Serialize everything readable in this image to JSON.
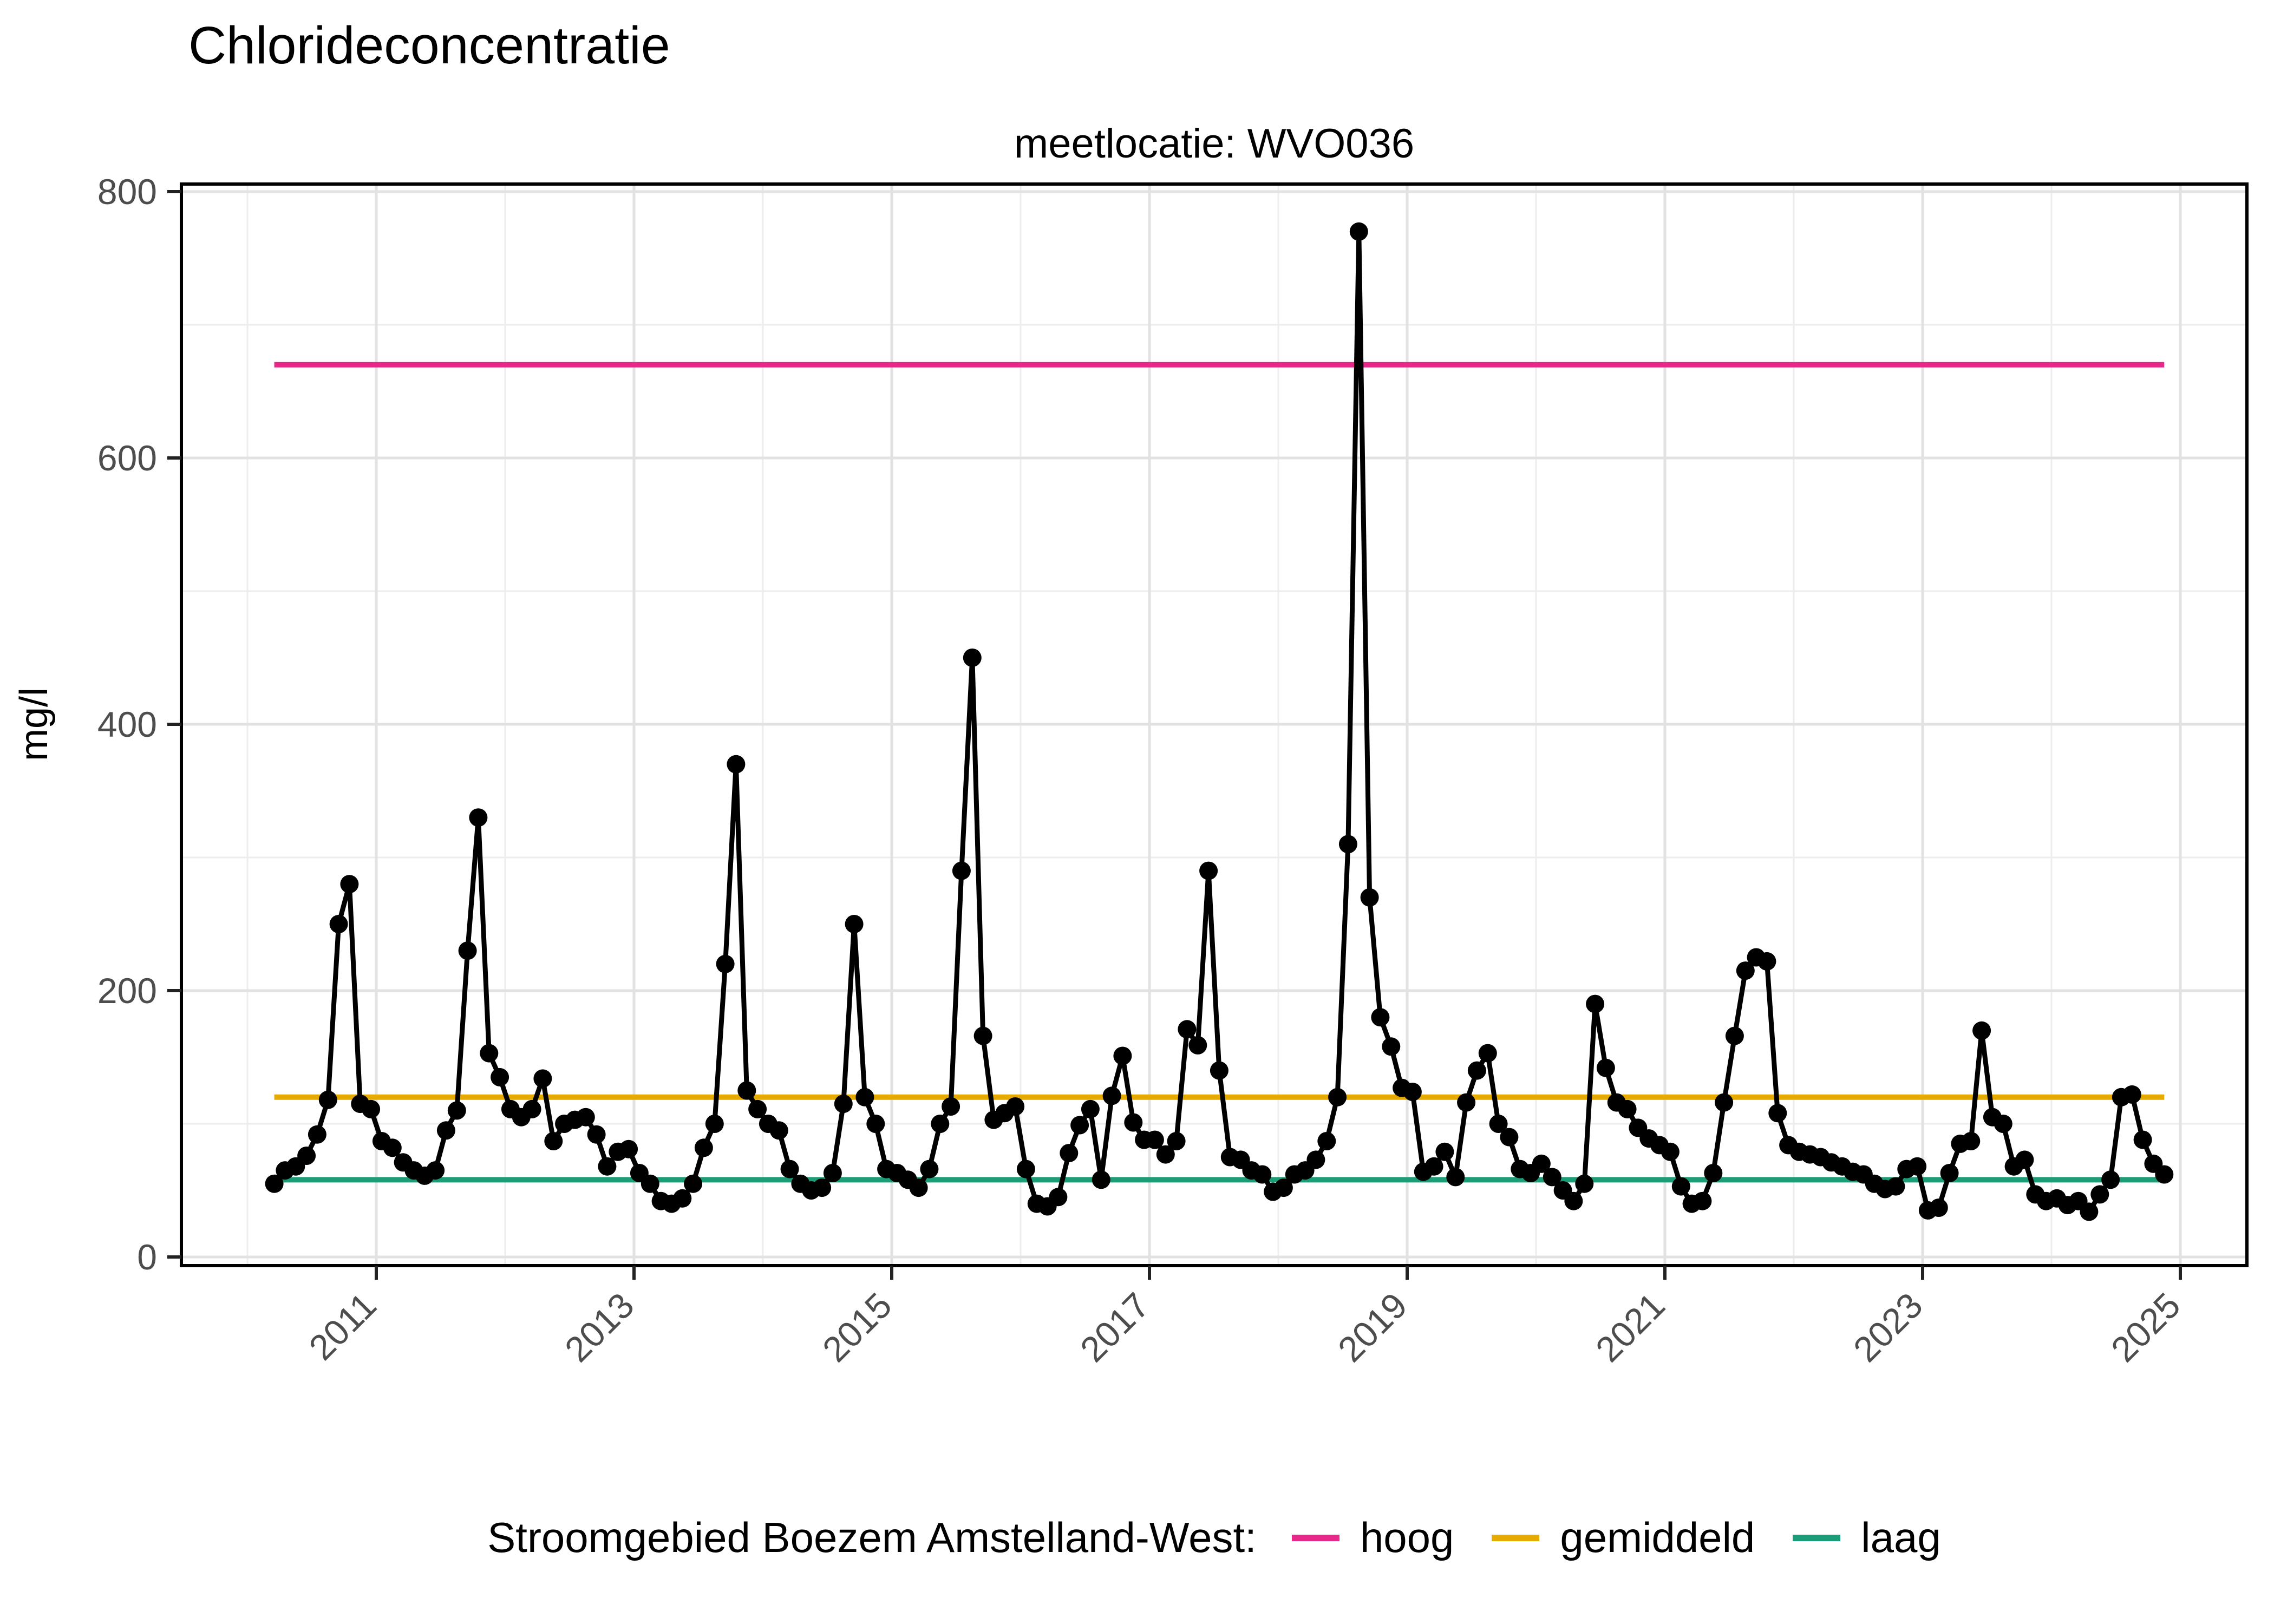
{
  "figure": {
    "title": "Chlorideconcentratie",
    "facet_title": "meetlocatie: WVO036",
    "y_axis_title": "mg/l"
  },
  "legend": {
    "title": "Stroomgebied Boezem Amstelland-West:",
    "items": [
      {
        "label": "hoog",
        "color": "#E7298A"
      },
      {
        "label": "gemiddeld",
        "color": "#E6AB02"
      },
      {
        "label": "laag",
        "color": "#1B9E77"
      }
    ]
  },
  "chart_data": {
    "type": "line",
    "title": "Chlorideconcentratie",
    "subtitle": "meetlocatie: WVO036",
    "xlabel": "",
    "ylabel": "mg/l",
    "ylim": [
      0,
      800
    ],
    "y_ticks": [
      0,
      200,
      400,
      600,
      800
    ],
    "y_minor_ticks": [
      100,
      300,
      500,
      700
    ],
    "x_ticks": [
      2011,
      2013,
      2015,
      2017,
      2019,
      2021,
      2023,
      2025
    ],
    "x_minor_ticks": [
      2010,
      2012,
      2014,
      2016,
      2018,
      2020,
      2022,
      2024
    ],
    "grid": true,
    "legend_position": "bottom",
    "point_color": "#000000",
    "line_color": "#000000",
    "axis_text_color": "#4D4D4D",
    "grid_major_color": "#E2E2E2",
    "grid_minor_color": "#EDEDED",
    "reference_lines": [
      {
        "label": "hoog",
        "value": 670,
        "color": "#E7298A"
      },
      {
        "label": "gemiddeld",
        "value": 120,
        "color": "#E6AB02"
      },
      {
        "label": "laag",
        "value": 58,
        "color": "#1B9E77"
      }
    ],
    "series": [
      {
        "name": "chlorideconcentratie WVO036",
        "frequency": "monthly",
        "start": "2010-03",
        "values": [
          55,
          65,
          68,
          76,
          92,
          118,
          250,
          280,
          115,
          111,
          87,
          82,
          71,
          65,
          61,
          65,
          95,
          110,
          230,
          330,
          153,
          135,
          111,
          105,
          111,
          134,
          87,
          100,
          103,
          105,
          92,
          68,
          79,
          81,
          63,
          55,
          42,
          40,
          44,
          55,
          82,
          100,
          220,
          370,
          125,
          111,
          100,
          95,
          66,
          55,
          50,
          52,
          63,
          115,
          250,
          120,
          100,
          66,
          63,
          58,
          52,
          66,
          100,
          113,
          290,
          450,
          166,
          103,
          108,
          113,
          66,
          40,
          38,
          45,
          78,
          99,
          111,
          58,
          121,
          151,
          101,
          88,
          88,
          77,
          87,
          171,
          159,
          290,
          140,
          75,
          73,
          65,
          62,
          49,
          52,
          62,
          65,
          73,
          87,
          120,
          310,
          770,
          270,
          180,
          158,
          127,
          124,
          64,
          68,
          79,
          60,
          116,
          140,
          153,
          100,
          90,
          66,
          63,
          70,
          60,
          50,
          42,
          55,
          190,
          142,
          116,
          111,
          97,
          89,
          84,
          79,
          53,
          40,
          42,
          63,
          116,
          166,
          215,
          225,
          222,
          108,
          84,
          79,
          77,
          75,
          71,
          68,
          64,
          62,
          55,
          51,
          53,
          66,
          68,
          35,
          37,
          63,
          85,
          87,
          170,
          105,
          100,
          68,
          73,
          47,
          42,
          44,
          39,
          42,
          34,
          47,
          58,
          120,
          122,
          88,
          70,
          62
        ]
      }
    ]
  }
}
